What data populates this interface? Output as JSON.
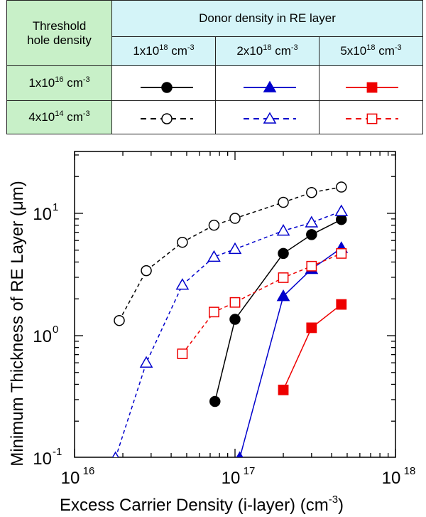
{
  "legend": {
    "corner_line1": "Threshold",
    "corner_line2": "hole density",
    "donor_header": "Donor density in RE layer",
    "donor_cols": [
      {
        "base": "1x10",
        "exp": "18",
        "unit": " cm",
        "unit_exp": "-3"
      },
      {
        "base": "2x10",
        "exp": "18",
        "unit": " cm",
        "unit_exp": "-3"
      },
      {
        "base": "5x10",
        "exp": "18",
        "unit": " cm",
        "unit_exp": "-3"
      }
    ],
    "hole_rows": [
      {
        "base": "1x10",
        "exp": "16",
        "unit": " cm",
        "unit_exp": "-3"
      },
      {
        "base": "4x10",
        "exp": "14",
        "unit": " cm",
        "unit_exp": "-3"
      }
    ]
  },
  "chart_data": {
    "type": "line",
    "x_scale": "log",
    "y_scale": "log",
    "xlim": [
      1e+16,
      1e+18
    ],
    "ylim": [
      0.1,
      20
    ],
    "xlabel": "Excess Carrier Density (i-layer)  (cm",
    "xlabel_exp": "-3",
    "xlabel_close": ")",
    "ylabel": "Minimum Thickness of RE Layer  (μm)",
    "x_ticks": [
      {
        "value": 1e+16,
        "base": "10",
        "exp": "16"
      },
      {
        "value": 1e+17,
        "base": "10",
        "exp": "17"
      },
      {
        "value": 1e+18,
        "base": "10",
        "exp": "18"
      }
    ],
    "y_ticks": [
      {
        "value": 0.1,
        "base": "10",
        "exp": "-1"
      },
      {
        "value": 1,
        "base": "10",
        "exp": "0"
      },
      {
        "value": 10,
        "base": "10",
        "exp": "1"
      }
    ],
    "series": [
      {
        "color": "#000000",
        "marker": "circle",
        "filled": true,
        "dash": false,
        "x": [
          7.5e+16,
          1e+17,
          2e+17,
          3e+17,
          4.6e+17
        ],
        "y": [
          0.29,
          1.36,
          4.7,
          6.7,
          8.9
        ]
      },
      {
        "color": "#0000cc",
        "marker": "triangle",
        "filled": true,
        "dash": false,
        "x": [
          1.07e+17,
          2e+17,
          3e+17,
          4.6e+17
        ],
        "y": [
          0.1,
          2.1,
          3.5,
          5.2
        ]
      },
      {
        "color": "#ee0000",
        "marker": "square",
        "filled": true,
        "dash": false,
        "x": [
          2e+17,
          3e+17,
          4.6e+17
        ],
        "y": [
          0.36,
          1.16,
          1.8
        ]
      },
      {
        "color": "#000000",
        "marker": "circle",
        "filled": false,
        "dash": true,
        "x": [
          1.9e+16,
          2.8e+16,
          4.7e+16,
          7.4e+16,
          1e+17,
          2e+17,
          3e+17,
          4.6e+17
        ],
        "y": [
          1.33,
          3.4,
          5.8,
          8.0,
          9.1,
          12.3,
          14.8,
          16.4
        ]
      },
      {
        "color": "#0000cc",
        "marker": "triangle",
        "filled": false,
        "dash": true,
        "x": [
          1.8e+16,
          2.8e+16,
          4.7e+16,
          7.4e+16,
          1e+17,
          2e+17,
          3e+17,
          4.6e+17
        ],
        "y": [
          0.1,
          0.6,
          2.6,
          4.4,
          5.1,
          7.2,
          8.4,
          10.4
        ]
      },
      {
        "color": "#ee0000",
        "marker": "square",
        "filled": false,
        "dash": true,
        "x": [
          4.7e+16,
          7.4e+16,
          1e+17,
          2e+17,
          3e+17,
          4.6e+17
        ],
        "y": [
          0.71,
          1.56,
          1.87,
          2.98,
          3.7,
          4.7
        ]
      }
    ]
  }
}
